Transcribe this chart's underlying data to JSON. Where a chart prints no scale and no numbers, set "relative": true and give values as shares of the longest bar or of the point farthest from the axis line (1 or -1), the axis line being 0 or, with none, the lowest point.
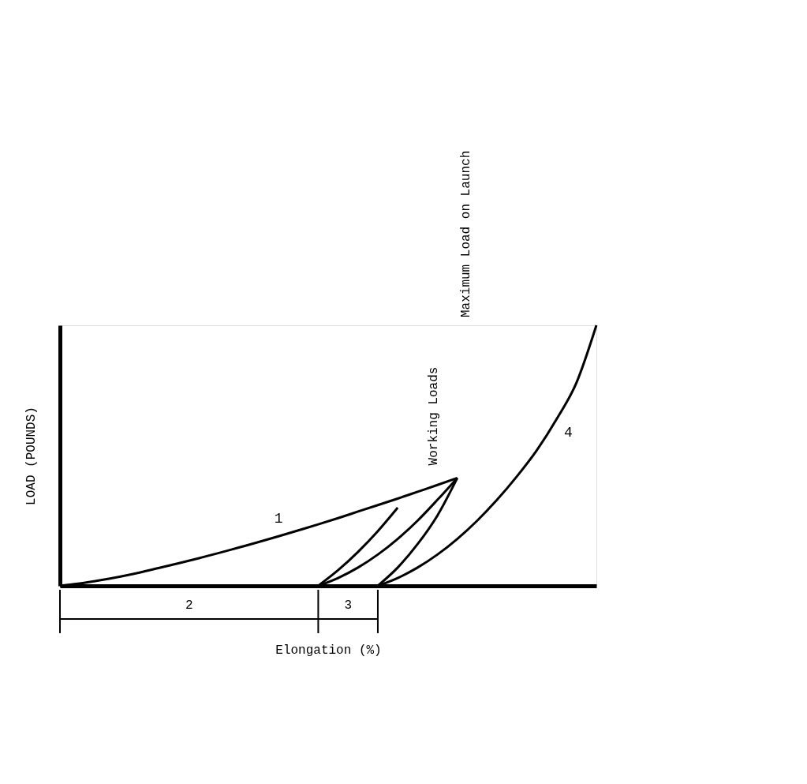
{
  "chart_data": {
    "type": "line",
    "relative": true,
    "xlabel": "Elongation (%)",
    "ylabel": "LOAD (POUNDS)",
    "categories": [
      null,
      null,
      null,
      null,
      null,
      null,
      null,
      null,
      null,
      null,
      null,
      null,
      null,
      null,
      null,
      null,
      null,
      null,
      null,
      null,
      null,
      null,
      null,
      null,
      null,
      null,
      null,
      null
    ],
    "series": [
      {
        "name": "1",
        "color": "#000000",
        "values": [
          0,
          0.009,
          0.021,
          0.035,
          0.051,
          0.069,
          0.087,
          0.106,
          0.126,
          0.147,
          0.168,
          0.19,
          0.213,
          0.236,
          0.26,
          0.285,
          0.31,
          0.335,
          0.361,
          0.387,
          0.414,
          null,
          null,
          null,
          null,
          null,
          null,
          null
        ]
      },
      {
        "color": "#000000",
        "values": [
          null,
          null,
          null,
          null,
          null,
          null,
          null,
          null,
          null,
          null,
          null,
          null,
          null,
          0,
          0.03,
          0.07,
          0.12,
          0.18,
          0.25,
          0.33,
          0.414,
          null,
          null,
          null,
          null,
          null,
          null,
          null
        ]
      },
      {
        "color": "#000000",
        "values": [
          null,
          null,
          null,
          null,
          null,
          null,
          null,
          null,
          null,
          null,
          null,
          null,
          null,
          0,
          0.06,
          0.13,
          0.21,
          0.3,
          null,
          null,
          null,
          null,
          null,
          null,
          null,
          null,
          null,
          null
        ]
      },
      {
        "color": "#000000",
        "values": [
          null,
          null,
          null,
          null,
          null,
          null,
          null,
          null,
          null,
          null,
          null,
          null,
          null,
          null,
          null,
          null,
          0,
          0.07,
          0.16,
          0.27,
          0.414,
          null,
          null,
          null,
          null,
          null,
          null,
          null
        ]
      },
      {
        "name": "4",
        "color": "#000000",
        "values": [
          null,
          null,
          null,
          null,
          null,
          null,
          null,
          null,
          null,
          null,
          null,
          null,
          null,
          null,
          null,
          null,
          0,
          0.03,
          0.07,
          0.12,
          0.18,
          0.25,
          0.33,
          0.42,
          0.52,
          0.64,
          0.78,
          1
        ]
      }
    ],
    "annotations": [
      "Maximum Load on Launch",
      "Working Loads",
      "2",
      "3"
    ],
    "grid": false,
    "marker": "none",
    "line_style": "solid"
  }
}
